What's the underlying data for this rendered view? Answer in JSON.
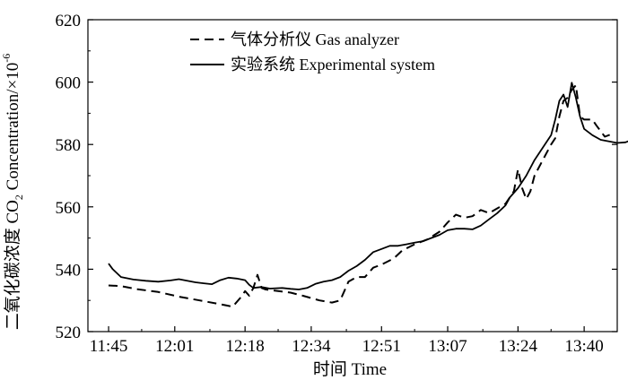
{
  "chart_data": {
    "type": "line",
    "xlabel": "时间 Time",
    "ylabel_main": "二氧化碳浓度 CO",
    "ylabel_sub": "2",
    "ylabel_tail": " Concentration/×10",
    "ylabel_sup": "-6",
    "x_ticks": [
      "11:45",
      "12:01",
      "12:18",
      "12:34",
      "12:51",
      "13:07",
      "13:24",
      "13:40"
    ],
    "x_tick_minutes": [
      705,
      721,
      738,
      754,
      771,
      787,
      804,
      820
    ],
    "xlim": [
      700,
      828
    ],
    "y_ticks": [
      "520",
      "540",
      "560",
      "580",
      "600",
      "620"
    ],
    "y_tick_values": [
      520,
      540,
      560,
      580,
      600,
      620
    ],
    "ylim": [
      520,
      620
    ],
    "legend_position": "top",
    "series": [
      {
        "name": "气体分析仪 Gas analyzer",
        "style": "dashed",
        "points": [
          [
            705,
            534.8
          ],
          [
            708,
            534.6
          ],
          [
            712,
            533.6
          ],
          [
            717,
            532.7
          ],
          [
            722,
            531.2
          ],
          [
            727,
            530.0
          ],
          [
            732,
            528.8
          ],
          [
            735,
            528.0
          ],
          [
            737,
            531.0
          ],
          [
            738,
            533.0
          ],
          [
            739,
            531.5
          ],
          [
            740,
            534.0
          ],
          [
            741,
            538.2
          ],
          [
            742,
            534.0
          ],
          [
            743,
            533.5
          ],
          [
            746,
            533.0
          ],
          [
            749,
            532.5
          ],
          [
            752,
            531.5
          ],
          [
            756,
            530.0
          ],
          [
            759,
            529.3
          ],
          [
            761,
            530.0
          ],
          [
            762,
            533.0
          ],
          [
            763,
            536.0
          ],
          [
            765,
            537.5
          ],
          [
            767,
            537.5
          ],
          [
            769,
            540.5
          ],
          [
            771,
            541.5
          ],
          [
            774,
            543.5
          ],
          [
            776,
            546.0
          ],
          [
            779,
            548.0
          ],
          [
            782,
            549.5
          ],
          [
            785,
            552.0
          ],
          [
            787,
            555.0
          ],
          [
            789,
            557.5
          ],
          [
            791,
            556.5
          ],
          [
            793,
            557.0
          ],
          [
            795,
            559.0
          ],
          [
            797,
            558.0
          ],
          [
            799,
            559.5
          ],
          [
            801,
            561.0
          ],
          [
            803,
            565.0
          ],
          [
            804,
            572.0
          ],
          [
            805,
            566.0
          ],
          [
            806,
            562.5
          ],
          [
            807,
            565.0
          ],
          [
            808,
            570.0
          ],
          [
            810,
            575.0
          ],
          [
            812,
            580.0
          ],
          [
            813,
            582.0
          ],
          [
            814,
            589.0
          ],
          [
            815,
            594.0
          ],
          [
            816,
            595.0
          ],
          [
            817,
            597.5
          ],
          [
            818,
            599.0
          ],
          [
            819,
            589.0
          ],
          [
            820,
            588.0
          ],
          [
            822,
            588.0
          ],
          [
            823,
            586.0
          ],
          [
            825,
            582.5
          ],
          [
            827,
            583.5
          ]
        ]
      },
      {
        "name": "实验系统 Experimental system",
        "style": "solid",
        "points": [
          [
            705,
            541.8
          ],
          [
            706,
            540.0
          ],
          [
            708,
            537.5
          ],
          [
            711,
            536.7
          ],
          [
            714,
            536.3
          ],
          [
            717,
            536.0
          ],
          [
            720,
            536.4
          ],
          [
            722,
            536.8
          ],
          [
            724,
            536.3
          ],
          [
            726,
            535.8
          ],
          [
            728,
            535.5
          ],
          [
            730,
            535.2
          ],
          [
            732,
            536.5
          ],
          [
            734,
            537.3
          ],
          [
            736,
            537.0
          ],
          [
            738,
            536.5
          ],
          [
            739,
            535.0
          ],
          [
            740,
            534.0
          ],
          [
            742,
            534.3
          ],
          [
            744,
            533.8
          ],
          [
            747,
            534.0
          ],
          [
            749,
            533.7
          ],
          [
            751,
            533.5
          ],
          [
            753,
            534.0
          ],
          [
            755,
            535.3
          ],
          [
            757,
            536.0
          ],
          [
            759,
            536.5
          ],
          [
            761,
            537.5
          ],
          [
            763,
            539.5
          ],
          [
            765,
            541.0
          ],
          [
            767,
            543.0
          ],
          [
            769,
            545.5
          ],
          [
            771,
            546.5
          ],
          [
            773,
            547.5
          ],
          [
            775,
            547.5
          ],
          [
            777,
            548.0
          ],
          [
            779,
            548.5
          ],
          [
            781,
            549.0
          ],
          [
            783,
            550.0
          ],
          [
            785,
            551.0
          ],
          [
            787,
            552.5
          ],
          [
            789,
            553.0
          ],
          [
            791,
            553.0
          ],
          [
            793,
            552.8
          ],
          [
            795,
            554.0
          ],
          [
            797,
            556.0
          ],
          [
            799,
            558.0
          ],
          [
            801,
            560.5
          ],
          [
            802,
            563.0
          ],
          [
            804,
            566.0
          ],
          [
            806,
            570.0
          ],
          [
            808,
            575.0
          ],
          [
            810,
            579.0
          ],
          [
            812,
            583.0
          ],
          [
            813,
            588.0
          ],
          [
            814,
            594.0
          ],
          [
            815,
            596.0
          ],
          [
            816,
            592.0
          ],
          [
            817,
            599.8
          ],
          [
            818,
            595.0
          ],
          [
            819,
            589.0
          ],
          [
            820,
            585.0
          ],
          [
            822,
            583.0
          ],
          [
            824,
            581.5
          ],
          [
            826,
            581.0
          ],
          [
            828,
            580.5
          ],
          [
            830,
            580.7
          ],
          [
            831,
            581.2
          ]
        ]
      }
    ]
  }
}
